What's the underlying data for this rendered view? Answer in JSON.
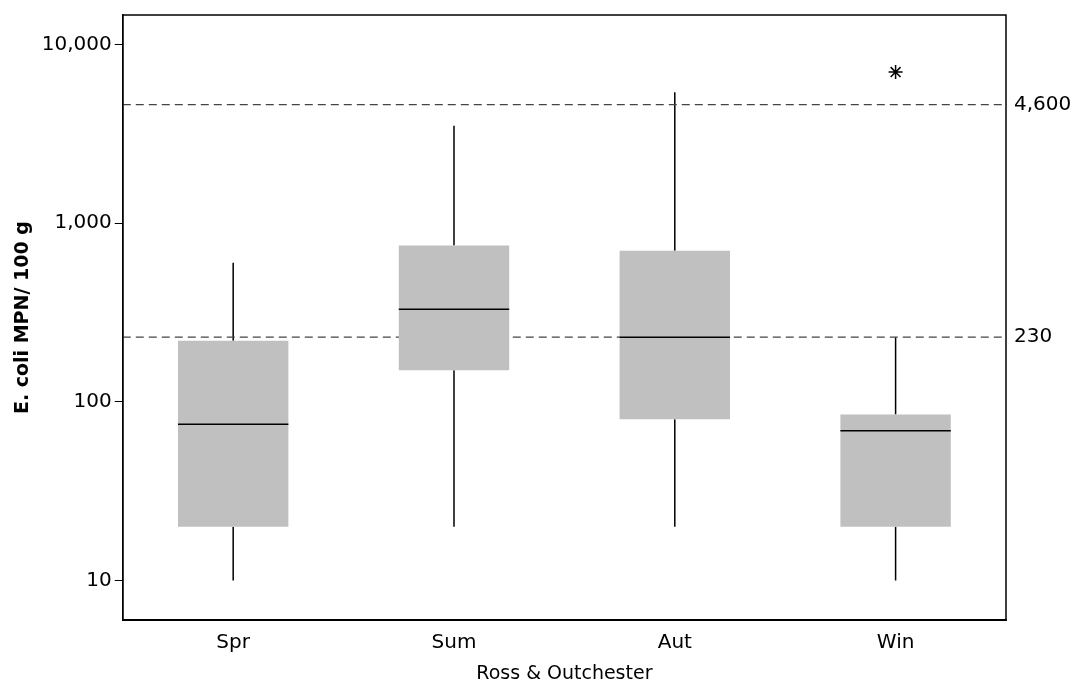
{
  "chart_data": {
    "type": "box",
    "xlabel": "Ross & Outchester",
    "ylabel": "E. coli MPN/ 100 g",
    "categories": [
      "Spr",
      "Sum",
      "Aut",
      "Win"
    ],
    "color": "#c0c0c0",
    "log": true,
    "ylim": [
      6,
      14600
    ],
    "yticks": [
      {
        "value": 10,
        "label": "10"
      },
      {
        "value": 100,
        "label": "100"
      },
      {
        "value": 1000,
        "label": "1,000"
      },
      {
        "value": 10000,
        "label": "10,000"
      }
    ],
    "boxes": [
      {
        "low": 10,
        "q1": 20,
        "median": 75,
        "q3": 220,
        "high": 600
      },
      {
        "low": 20,
        "q1": 150,
        "median": 330,
        "q3": 750,
        "high": 3500
      },
      {
        "low": 20,
        "q1": 80,
        "median": 230,
        "q3": 700,
        "high": 5400
      },
      {
        "low": 10,
        "q1": 20,
        "median": 69,
        "q3": 85,
        "high": 230,
        "outliers": [
          7000
        ]
      }
    ],
    "ref_lines": [
      {
        "axis": "y",
        "value": 4600,
        "label": "4,600",
        "line_style": "dashed"
      },
      {
        "axis": "y",
        "value": 230,
        "label": "230",
        "line_style": "dashed"
      }
    ],
    "grid": false,
    "legend": false
  }
}
